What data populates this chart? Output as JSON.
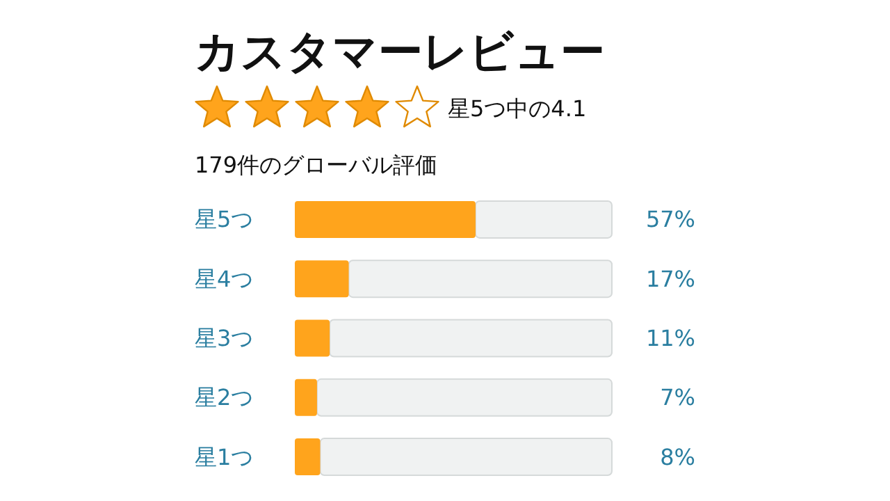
{
  "chart_data": {
    "type": "bar",
    "orientation": "horizontal",
    "title": "カスタマーレビュー",
    "subtitle": "星5つ中の4.1",
    "annotations": [
      "179件のグローバル評価"
    ],
    "categories": [
      "星5つ",
      "星4つ",
      "星3つ",
      "星2つ",
      "星1つ"
    ],
    "values": [
      57,
      17,
      11,
      7,
      8
    ],
    "value_labels": [
      "57%",
      "17%",
      "11%",
      "7%",
      "8%"
    ],
    "color": "#ffa41c",
    "xlim": [
      0,
      100
    ],
    "tick_labels": "y"
  }
}
